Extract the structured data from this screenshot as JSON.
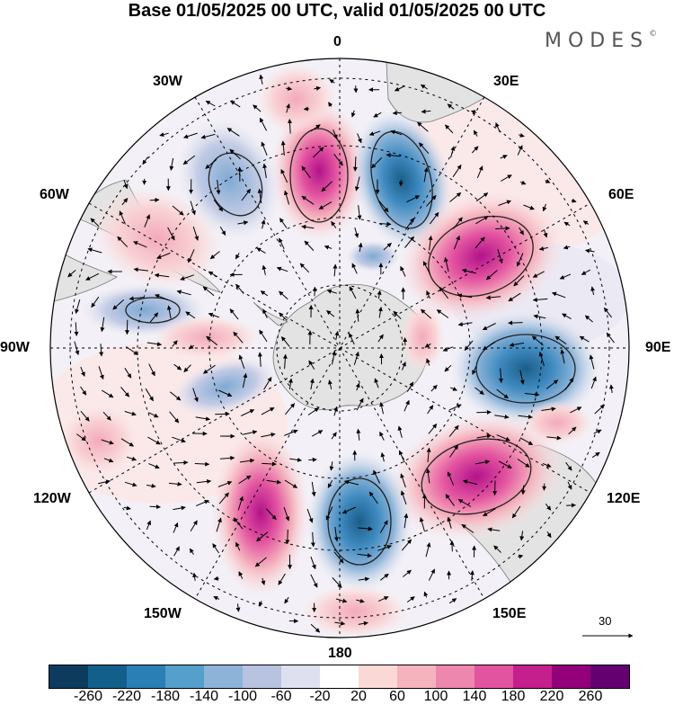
{
  "title": "Base 01/05/2025 00 UTC, valid 01/05/2025 00 UTC",
  "brand": {
    "name": "MODES",
    "mark": "©"
  },
  "longitude_labels": {
    "top": "0",
    "top_right": "30E",
    "right_upper": "60E",
    "right": "90E",
    "right_lower": "120E",
    "bottom_right": "150E",
    "bottom": "180",
    "bottom_left": "150W",
    "left_lower": "120W",
    "left": "90W",
    "left_upper": "60W",
    "top_left": "30W"
  },
  "vector_reference": {
    "value": "30"
  },
  "colorbar": {
    "colors": [
      "#0d3b5e",
      "#135f8c",
      "#2a7fb5",
      "#559fcc",
      "#8db4d8",
      "#b7c3e1",
      "#dfe0ef",
      "#ffffff",
      "#f9d8d6",
      "#f5b3be",
      "#ee87ae",
      "#e354a0",
      "#c41f8c",
      "#93007a",
      "#650070"
    ],
    "ticks": [
      "-260",
      "-220",
      "-180",
      "-140",
      "-100",
      "-60",
      "-20",
      "20",
      "60",
      "100",
      "140",
      "180",
      "220",
      "260"
    ]
  },
  "map": {
    "projection": "south polar stereographic",
    "background_color": "#ffffff",
    "land_color": "#e3e3e3"
  }
}
